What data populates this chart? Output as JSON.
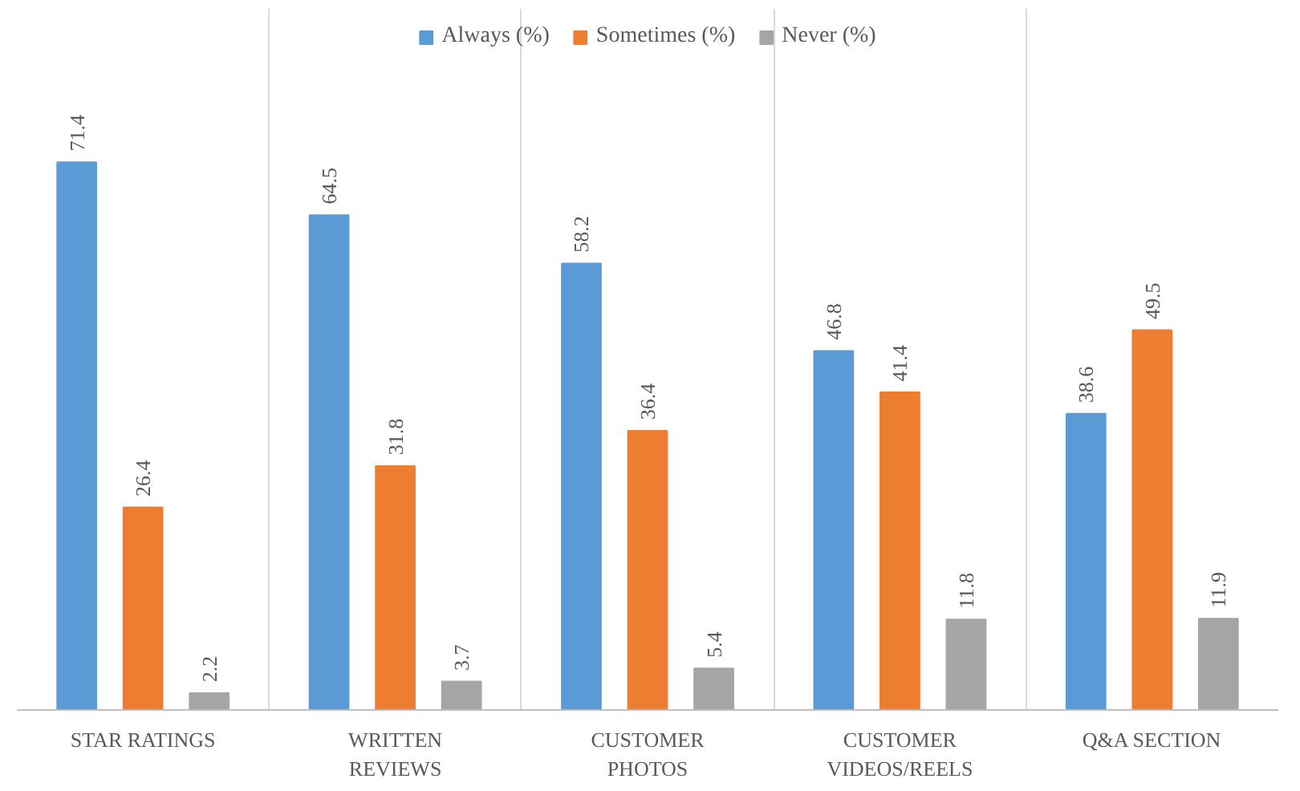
{
  "chart_data": {
    "type": "bar",
    "categories": [
      "STAR RATINGS",
      "WRITTEN\nREVIEWS",
      "CUSTOMER\nPHOTOS",
      "CUSTOMER\nVIDEOS/REELS",
      "Q&A SECTION"
    ],
    "series": [
      {
        "name": "Always (%)",
        "color": "#5b9bd5",
        "values": [
          71.4,
          64.5,
          58.2,
          46.8,
          38.6
        ]
      },
      {
        "name": "Sometimes (%)",
        "color": "#ed7d31",
        "values": [
          26.4,
          31.8,
          36.4,
          41.4,
          49.5
        ]
      },
      {
        "name": "Never (%)",
        "color": "#a5a5a5",
        "values": [
          2.2,
          3.7,
          5.4,
          11.8,
          11.9
        ]
      }
    ],
    "data_labels": true,
    "legend": "top",
    "grid": "x"
  }
}
